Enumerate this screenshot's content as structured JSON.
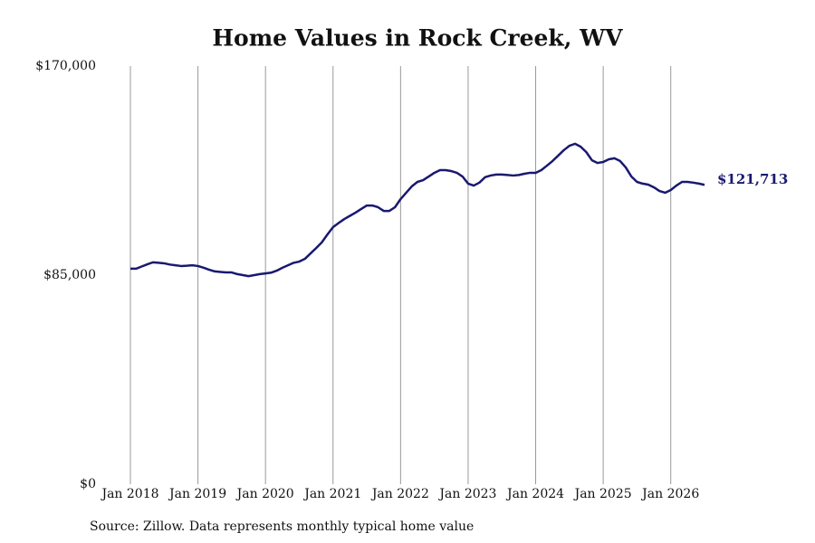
{
  "chart_data": {
    "type": "line",
    "title": "Home Values in Rock Creek, WV",
    "source": "Source: Zillow. Data represents monthly typical home value",
    "x": [
      "2018-01",
      "2018-02",
      "2018-03",
      "2018-04",
      "2018-05",
      "2018-06",
      "2018-07",
      "2018-08",
      "2018-09",
      "2018-10",
      "2018-11",
      "2018-12",
      "2019-01",
      "2019-02",
      "2019-03",
      "2019-04",
      "2019-05",
      "2019-06",
      "2019-07",
      "2019-08",
      "2019-09",
      "2019-10",
      "2019-11",
      "2019-12",
      "2020-01",
      "2020-02",
      "2020-03",
      "2020-04",
      "2020-05",
      "2020-06",
      "2020-07",
      "2020-08",
      "2020-09",
      "2020-10",
      "2020-11",
      "2020-12",
      "2021-01",
      "2021-02",
      "2021-03",
      "2021-04",
      "2021-05",
      "2021-06",
      "2021-07",
      "2021-08",
      "2021-09",
      "2021-10",
      "2021-11",
      "2021-12",
      "2022-01",
      "2022-02",
      "2022-03",
      "2022-04",
      "2022-05",
      "2022-06",
      "2022-07",
      "2022-08",
      "2022-09",
      "2022-10",
      "2022-11",
      "2022-12",
      "2023-01",
      "2023-02",
      "2023-03",
      "2023-04",
      "2023-05",
      "2023-06",
      "2023-07",
      "2023-08",
      "2023-09",
      "2023-10",
      "2023-11",
      "2023-12",
      "2024-01",
      "2024-02",
      "2024-03",
      "2024-04",
      "2024-05",
      "2024-06",
      "2024-07",
      "2024-08",
      "2024-09",
      "2024-10",
      "2024-11",
      "2024-12",
      "2025-01",
      "2025-02",
      "2025-03",
      "2025-04",
      "2025-05",
      "2025-06",
      "2025-07",
      "2025-08",
      "2025-09",
      "2025-10",
      "2025-11",
      "2025-12",
      "2026-01",
      "2026-02",
      "2026-03",
      "2026-04",
      "2026-05",
      "2026-06",
      "2026-07"
    ],
    "series": [
      {
        "name": "Typical home value",
        "color": "#191970",
        "values": [
          87600,
          87600,
          88500,
          89400,
          90200,
          90000,
          89800,
          89300,
          89000,
          88700,
          88800,
          89000,
          88700,
          88000,
          87200,
          86500,
          86300,
          86100,
          86100,
          85400,
          85000,
          84600,
          85000,
          85400,
          85700,
          86000,
          86800,
          88000,
          89000,
          90000,
          90500,
          91600,
          93800,
          96000,
          98300,
          101500,
          104500,
          106200,
          107800,
          109100,
          110400,
          111900,
          113300,
          113300,
          112600,
          111100,
          111100,
          112600,
          115900,
          118500,
          121100,
          122900,
          123600,
          125100,
          126600,
          127700,
          127700,
          127300,
          126600,
          125100,
          122200,
          121400,
          122600,
          124800,
          125500,
          125900,
          125900,
          125700,
          125500,
          125700,
          126200,
          126600,
          126600,
          127700,
          129500,
          131400,
          133600,
          135800,
          137600,
          138400,
          137200,
          135000,
          131700,
          130600,
          131000,
          132100,
          132500,
          131400,
          128800,
          125100,
          122900,
          122200,
          121800,
          120700,
          119200,
          118500,
          119600,
          121400,
          122900,
          122900,
          122600,
          122200,
          121713
        ]
      }
    ],
    "annotations": [
      {
        "x": "2026-07",
        "value": 121713,
        "label": "$121,713"
      }
    ],
    "xlim": [
      "2018-01",
      "2026-07"
    ],
    "xticks": [
      {
        "value": "2018-01",
        "label": "Jan 2018"
      },
      {
        "value": "2019-01",
        "label": "Jan 2019"
      },
      {
        "value": "2020-01",
        "label": "Jan 2020"
      },
      {
        "value": "2021-01",
        "label": "Jan 2021"
      },
      {
        "value": "2022-01",
        "label": "Jan 2022"
      },
      {
        "value": "2023-01",
        "label": "Jan 2023"
      },
      {
        "value": "2024-01",
        "label": "Jan 2024"
      },
      {
        "value": "2025-01",
        "label": "Jan 2025"
      },
      {
        "value": "2026-01",
        "label": "Jan 2026"
      }
    ],
    "ylim": [
      0,
      170000
    ],
    "yticks": [
      {
        "value": 0,
        "label": "$0"
      },
      {
        "value": 85000,
        "label": "$85,000"
      },
      {
        "value": 170000,
        "label": "$170,000"
      }
    ],
    "grid": "x"
  }
}
